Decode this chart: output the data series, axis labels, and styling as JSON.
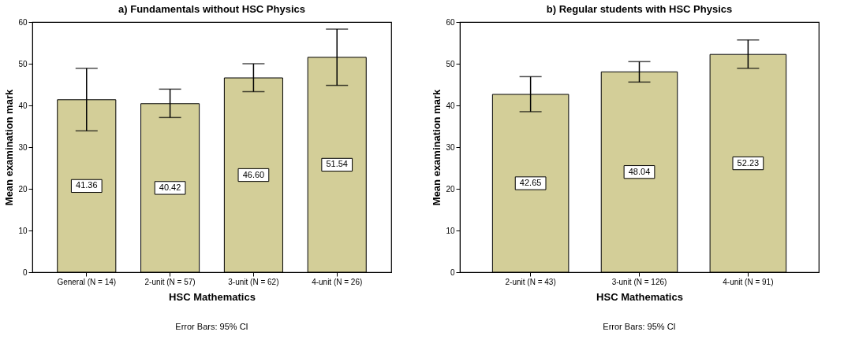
{
  "chart_data": [
    {
      "type": "bar",
      "title": "a) Fundamentals without HSC Physics",
      "xlabel": "HSC Mathematics",
      "ylabel": "Mean examination mark",
      "categories": [
        "General (N = 14)",
        "2-unit (N = 57)",
        "3-unit (N = 62)",
        "4-unit (N = 26)"
      ],
      "values": [
        41.36,
        40.42,
        46.6,
        51.54
      ],
      "color": "#d3ce98",
      "errors": [
        [
          33.9,
          48.9
        ],
        [
          37.1,
          43.9
        ],
        [
          43.3,
          50.0
        ],
        [
          44.8,
          58.3
        ]
      ],
      "value_labels": [
        "41.36",
        "40.42",
        "46.60",
        "51.54"
      ],
      "ylim": [
        0,
        60
      ],
      "yticks": [
        0,
        10,
        20,
        30,
        40,
        50,
        60
      ],
      "grid": false,
      "annotations": [
        "Error Bars: 95% CI"
      ]
    },
    {
      "type": "bar",
      "title": "b) Regular students with HSC Physics",
      "xlabel": "HSC Mathematics",
      "ylabel": "Mean examination mark",
      "categories": [
        "2-unit (N = 43)",
        "3-unit (N = 126)",
        "4-unit (N = 91)"
      ],
      "values": [
        42.65,
        48.04,
        52.23
      ],
      "color": "#d3ce98",
      "errors": [
        [
          38.5,
          46.9
        ],
        [
          45.6,
          50.5
        ],
        [
          48.9,
          55.7
        ]
      ],
      "value_labels": [
        "42.65",
        "48.04",
        "52.23"
      ],
      "ylim": [
        0,
        60
      ],
      "yticks": [
        0,
        10,
        20,
        30,
        40,
        50,
        60
      ],
      "grid": false,
      "annotations": [
        "Error Bars: 95% CI"
      ]
    }
  ]
}
